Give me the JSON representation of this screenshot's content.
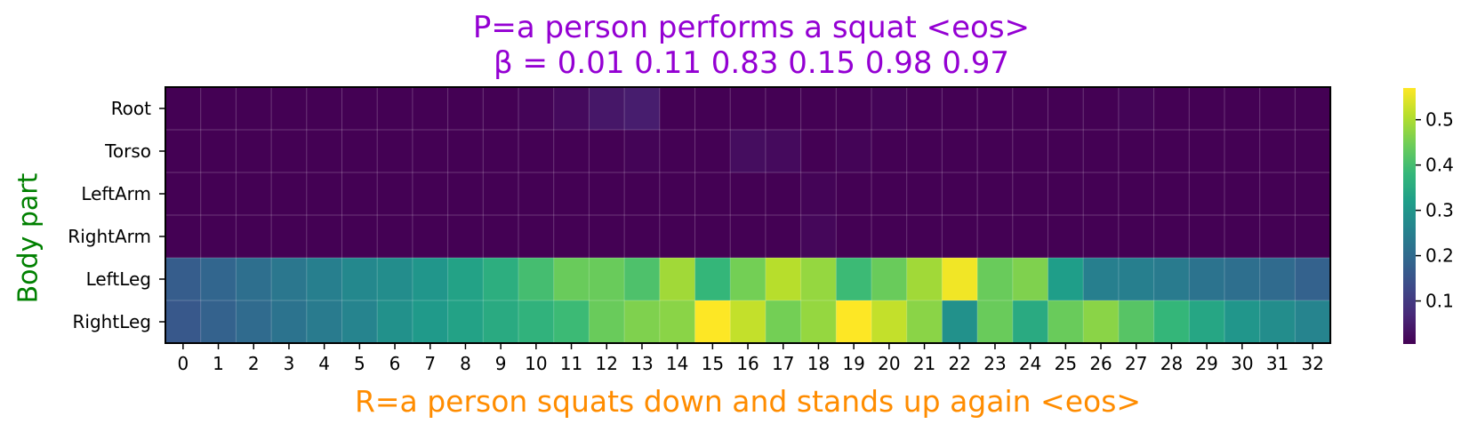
{
  "colors": {
    "title": "#9400d3",
    "ylabel": "#008000",
    "xlabel": "#ff8c00",
    "colormap": "viridis"
  },
  "chart_data": {
    "type": "heatmap",
    "title": "P=a person performs a squat <eos>",
    "subtitle": "β = 0.01 0.11 0.83 0.15 0.98 0.97",
    "xlabel": "R=a person squats down and stands up again <eos>",
    "ylabel": "Body part",
    "x_labels": [
      "0",
      "1",
      "2",
      "3",
      "4",
      "5",
      "6",
      "7",
      "8",
      "9",
      "10",
      "11",
      "12",
      "13",
      "14",
      "15",
      "16",
      "17",
      "18",
      "19",
      "20",
      "21",
      "22",
      "23",
      "24",
      "25",
      "26",
      "27",
      "28",
      "29",
      "30",
      "31",
      "32"
    ],
    "y_labels": [
      "Root",
      "Torso",
      "LeftArm",
      "RightArm",
      "LeftLeg",
      "RightLeg"
    ],
    "values": [
      [
        0.005,
        0.005,
        0.005,
        0.005,
        0.005,
        0.005,
        0.005,
        0.005,
        0.005,
        0.005,
        0.01,
        0.02,
        0.04,
        0.05,
        0.005,
        0.005,
        0.005,
        0.005,
        0.005,
        0.005,
        0.01,
        0.005,
        0.005,
        0.005,
        0.005,
        0.005,
        0.005,
        0.01,
        0.005,
        0.005,
        0.005,
        0.005,
        0.005
      ],
      [
        0.005,
        0.005,
        0.005,
        0.005,
        0.005,
        0.005,
        0.005,
        0.005,
        0.005,
        0.005,
        0.005,
        0.005,
        0.005,
        0.01,
        0.005,
        0.005,
        0.025,
        0.02,
        0.005,
        0.01,
        0.005,
        0.005,
        0.005,
        0.005,
        0.005,
        0.005,
        0.005,
        0.005,
        0.005,
        0.005,
        0.005,
        0.005,
        0.005
      ],
      [
        0.005,
        0.005,
        0.005,
        0.005,
        0.005,
        0.005,
        0.005,
        0.005,
        0.005,
        0.005,
        0.005,
        0.005,
        0.005,
        0.005,
        0.005,
        0.005,
        0.005,
        0.005,
        0.01,
        0.005,
        0.005,
        0.005,
        0.005,
        0.005,
        0.005,
        0.005,
        0.005,
        0.005,
        0.005,
        0.005,
        0.005,
        0.005,
        0.005
      ],
      [
        0.005,
        0.005,
        0.005,
        0.005,
        0.005,
        0.005,
        0.005,
        0.005,
        0.005,
        0.005,
        0.005,
        0.005,
        0.005,
        0.005,
        0.005,
        0.005,
        0.005,
        0.005,
        0.015,
        0.005,
        0.005,
        0.005,
        0.005,
        0.005,
        0.005,
        0.005,
        0.005,
        0.005,
        0.005,
        0.005,
        0.005,
        0.005,
        0.005
      ],
      [
        0.17,
        0.19,
        0.21,
        0.23,
        0.25,
        0.27,
        0.28,
        0.3,
        0.33,
        0.36,
        0.4,
        0.44,
        0.44,
        0.41,
        0.49,
        0.38,
        0.45,
        0.51,
        0.48,
        0.39,
        0.44,
        0.49,
        0.56,
        0.44,
        0.46,
        0.32,
        0.25,
        0.25,
        0.24,
        0.22,
        0.21,
        0.2,
        0.18
      ],
      [
        0.16,
        0.18,
        0.2,
        0.22,
        0.24,
        0.26,
        0.29,
        0.31,
        0.33,
        0.35,
        0.37,
        0.39,
        0.44,
        0.46,
        0.47,
        0.57,
        0.52,
        0.45,
        0.48,
        0.57,
        0.52,
        0.47,
        0.29,
        0.44,
        0.35,
        0.44,
        0.47,
        0.42,
        0.38,
        0.34,
        0.3,
        0.28,
        0.26
      ]
    ],
    "colorbar": {
      "vmin": 0.005,
      "vmax": 0.57,
      "ticks": [
        0.1,
        0.2,
        0.3,
        0.4,
        0.5
      ]
    }
  }
}
